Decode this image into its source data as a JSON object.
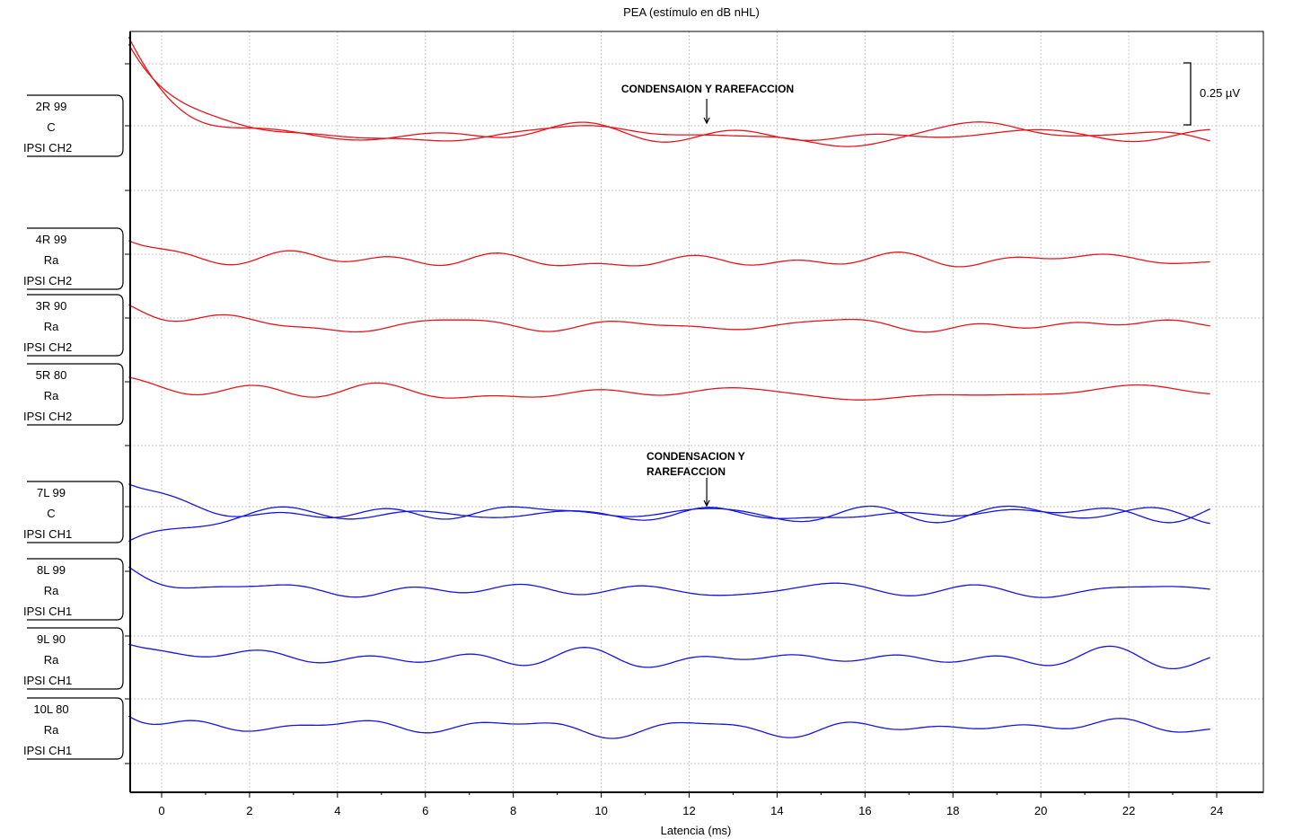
{
  "chart_data": {
    "type": "line",
    "title": "PEA (estímulo en dB nHL)",
    "xlabel": "Latencia (ms)",
    "ylabel": "",
    "xlim": [
      -0.75,
      25
    ],
    "xticks": [
      0,
      2,
      4,
      6,
      8,
      10,
      12,
      14,
      16,
      18,
      20,
      22,
      24
    ],
    "grid": true,
    "scale_bar": {
      "label": "0.25 µV",
      "value_uV": 0.25
    },
    "annotations": [
      {
        "lines": [
          "CONDENSAION Y RAREFACCION"
        ],
        "x": 12.4,
        "trace": "2R 99"
      },
      {
        "lines": [
          "CONDENSACION Y",
          "RAREFACCION"
        ],
        "x": 12.4,
        "trace": "7L 99"
      }
    ],
    "colors": {
      "right_ear": "#e8141c",
      "left_ear": "#1414e6"
    },
    "traces": [
      {
        "label": [
          "2R 99",
          "C",
          "IPSI CH2"
        ],
        "ear": "right",
        "overlay": 2
      },
      {
        "label": [
          "4R 99",
          "Ra",
          "IPSI CH2"
        ],
        "ear": "right",
        "overlay": 1
      },
      {
        "label": [
          "3R 90",
          "Ra",
          "IPSI CH2"
        ],
        "ear": "right",
        "overlay": 1
      },
      {
        "label": [
          "5R 80",
          "Ra",
          "IPSI CH2"
        ],
        "ear": "right",
        "overlay": 1
      },
      {
        "label": [
          "7L 99",
          "C",
          "IPSI CH1"
        ],
        "ear": "left",
        "overlay": 2
      },
      {
        "label": [
          "8L 99",
          "Ra",
          "IPSI CH1"
        ],
        "ear": "left",
        "overlay": 1
      },
      {
        "label": [
          "9L 90",
          "Ra",
          "IPSI CH1"
        ],
        "ear": "left",
        "overlay": 1
      },
      {
        "label": [
          "10L 80",
          "Ra",
          "IPSI CH1"
        ],
        "ear": "left",
        "overlay": 1
      }
    ]
  }
}
